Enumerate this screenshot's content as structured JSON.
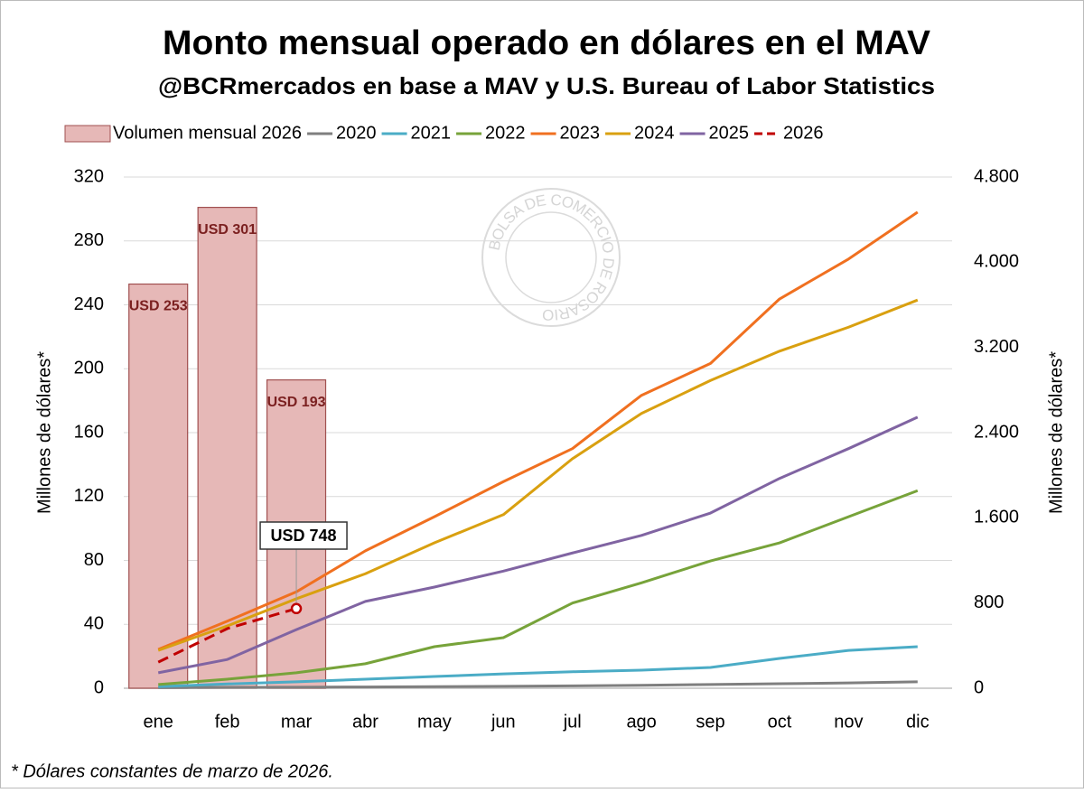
{
  "chart_data": {
    "type": "combo",
    "title": "Monto mensual operado en dólares en el MAV",
    "subtitle": "@BCRmercados en base a MAV y U.S. Bureau of Labor Statistics",
    "watermark": "BOLSA DE COMERCIO DE ROSARIO",
    "categories": [
      "ene",
      "feb",
      "mar",
      "abr",
      "may",
      "jun",
      "jul",
      "ago",
      "sep",
      "oct",
      "nov",
      "dic"
    ],
    "series": [
      {
        "name": "Volumen mensual 2026",
        "type": "bar",
        "color": "#e6b8b7",
        "edge": "#a05050",
        "values": [
          253,
          301,
          193,
          null,
          null,
          null,
          null,
          null,
          null,
          null,
          null,
          null
        ],
        "value_labels": [
          "USD 253",
          "USD 301",
          "USD 193",
          null,
          null,
          null,
          null,
          null,
          null,
          null,
          null,
          null
        ]
      },
      {
        "name": "2020",
        "type": "line",
        "axis": "y2",
        "color": "#7f7f7f",
        "values": [
          5,
          8,
          10,
          12,
          15,
          18,
          22,
          28,
          35,
          42,
          50,
          60
        ]
      },
      {
        "name": "2021",
        "type": "line",
        "axis": "y2",
        "color": "#4bacc6",
        "values": [
          15,
          40,
          60,
          85,
          110,
          135,
          155,
          170,
          195,
          280,
          355,
          390
        ]
      },
      {
        "name": "2022",
        "type": "line",
        "axis": "y2",
        "color": "#77a33a",
        "values": [
          35,
          85,
          145,
          230,
          390,
          475,
          800,
          990,
          1195,
          1365,
          1610,
          1855
        ]
      },
      {
        "name": "2023",
        "type": "line",
        "axis": "y2",
        "color": "#f07020",
        "values": [
          365,
          630,
          905,
          1290,
          1610,
          1940,
          2250,
          2750,
          3050,
          3655,
          4030,
          4470
        ]
      },
      {
        "name": "2024",
        "type": "line",
        "axis": "y2",
        "color": "#d9a010",
        "values": [
          355,
          585,
          840,
          1075,
          1365,
          1630,
          2155,
          2580,
          2890,
          3165,
          3390,
          3645
        ]
      },
      {
        "name": "2025",
        "type": "line",
        "axis": "y2",
        "color": "#8064a2",
        "values": [
          145,
          270,
          550,
          815,
          950,
          1100,
          1270,
          1435,
          1645,
          1970,
          2250,
          2545
        ]
      },
      {
        "name": "2026",
        "type": "line",
        "axis": "y2",
        "color": "#c00000",
        "dashed": true,
        "values": [
          245,
          560,
          748,
          null,
          null,
          null,
          null,
          null,
          null,
          null,
          null,
          null
        ],
        "value_labels": [
          null,
          null,
          "USD 748",
          null,
          null,
          null,
          null,
          null,
          null,
          null,
          null,
          null
        ]
      }
    ],
    "ylabel": "Millones de dólares*",
    "y2label": "Millones de dólares*",
    "ylim": [
      0,
      320
    ],
    "yticks": [
      0,
      40,
      80,
      120,
      160,
      200,
      240,
      280,
      320
    ],
    "y2lim": [
      0,
      4800
    ],
    "y2ticks": [
      0,
      800,
      {
        "value": 1600,
        "label": "1.600"
      },
      {
        "value": 2400,
        "label": "2.400"
      },
      {
        "value": 3200,
        "label": "3.200"
      },
      {
        "value": 4000,
        "label": "4.000"
      },
      {
        "value": 4800,
        "label": "4.800"
      }
    ],
    "grid": true,
    "legend": "top",
    "footnote": "* Dólares constantes de marzo de 2026."
  }
}
